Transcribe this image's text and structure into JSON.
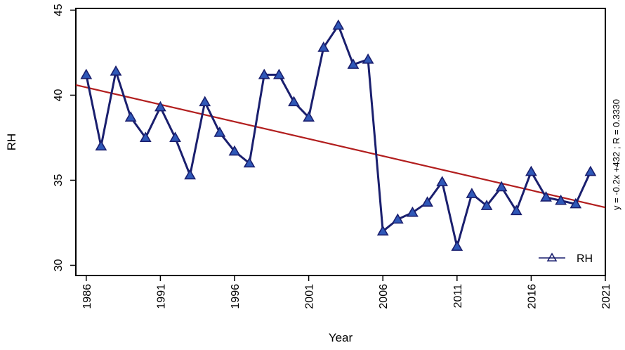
{
  "chart_data": {
    "type": "line",
    "title": "",
    "xlabel": "Year",
    "ylabel": "RH",
    "xlim": [
      1985.3,
      2021.0
    ],
    "ylim": [
      29.4,
      45.1
    ],
    "xticks": [
      1986,
      1991,
      1996,
      2001,
      2006,
      2011,
      2016,
      2021
    ],
    "xtick_labels": [
      "1986",
      "1991",
      "1996",
      "2001",
      "2006",
      "2011",
      "2016",
      "2021"
    ],
    "yticks": [
      30,
      35,
      40,
      45
    ],
    "ytick_labels": [
      "30",
      "35",
      "40",
      "45"
    ],
    "grid": false,
    "legend": {
      "position": "bottom-right",
      "entries": [
        "RH"
      ]
    },
    "annotation": "y = -0.2x +432 ; R = 0.3330",
    "colors": {
      "series": "#1a1f6e",
      "marker_fill": "#2f58b8",
      "trend": "#b21e1e"
    },
    "series": [
      {
        "name": "RH",
        "x": [
          1986,
          1987,
          1988,
          1989,
          1990,
          1991,
          1992,
          1993,
          1994,
          1995,
          1996,
          1997,
          1998,
          1999,
          2000,
          2001,
          2002,
          2003,
          2004,
          2005,
          2006,
          2007,
          2008,
          2009,
          2010,
          2011,
          2012,
          2013,
          2014,
          2015,
          2016,
          2017,
          2018,
          2019,
          2020
        ],
        "y": [
          41.2,
          37.0,
          41.4,
          38.7,
          37.5,
          39.3,
          37.5,
          35.3,
          39.6,
          37.8,
          36.7,
          36.0,
          41.2,
          41.2,
          39.6,
          38.7,
          42.8,
          44.1,
          41.8,
          42.1,
          32.0,
          32.7,
          33.1,
          33.7,
          34.9,
          31.1,
          34.2,
          33.5,
          34.6,
          33.2,
          35.5,
          34.0,
          33.8,
          33.6,
          35.5
        ]
      }
    ],
    "trendline": {
      "x": [
        1985.3,
        2021.0
      ],
      "y": [
        40.6,
        33.4
      ]
    }
  }
}
